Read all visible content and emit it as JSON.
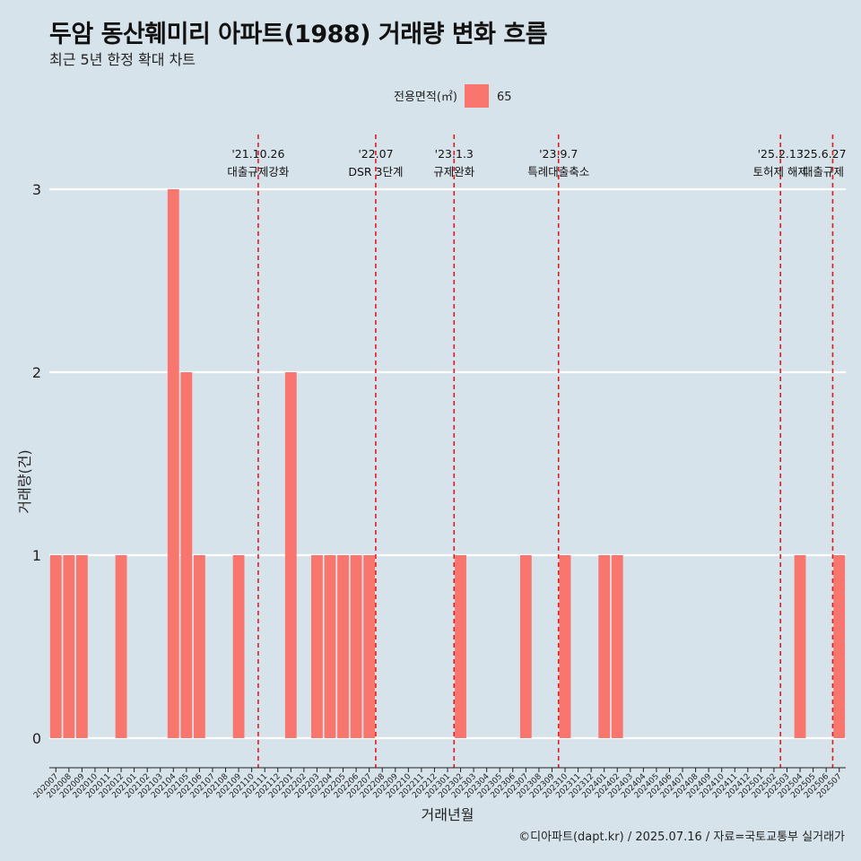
{
  "header": {
    "title": "두암 동산훼미리 아파트(1988) 거래량 변화 흐름",
    "subtitle": "최근 5년 한정 확대 차트"
  },
  "footer": {
    "caption": "©디아파트(dapt.kr) / 2025.07.16 / 자료=국토교통부 실거래가"
  },
  "colors": {
    "background": "#d7e3ea",
    "bar": "#f8766d",
    "gridline": "#ffffff",
    "event_line": "#e31a1c"
  },
  "chart_data": {
    "type": "bar",
    "xlabel": "거래년월",
    "ylabel": "거래량(건)",
    "ylim": [
      0,
      3
    ],
    "yticks": [
      0,
      1,
      2,
      3
    ],
    "grid": "horizontal",
    "legend": {
      "title": "전용면적(㎡)",
      "placement": "top",
      "entries": [
        "65"
      ]
    },
    "categories": [
      "202007",
      "202008",
      "202009",
      "202010",
      "202011",
      "202012",
      "202101",
      "202102",
      "202103",
      "202104",
      "202105",
      "202106",
      "202107",
      "202108",
      "202109",
      "202110",
      "202111",
      "202112",
      "202201",
      "202202",
      "202203",
      "202204",
      "202205",
      "202206",
      "202207",
      "202208",
      "202209",
      "202210",
      "202211",
      "202212",
      "202301",
      "202302",
      "202303",
      "202304",
      "202305",
      "202306",
      "202307",
      "202308",
      "202309",
      "202310",
      "202311",
      "202312",
      "202401",
      "202402",
      "202403",
      "202404",
      "202405",
      "202406",
      "202407",
      "202408",
      "202409",
      "202410",
      "202411",
      "202412",
      "202501",
      "202502",
      "202503",
      "202504",
      "202505",
      "202506",
      "202507"
    ],
    "series": [
      {
        "name": "65",
        "values": [
          1,
          1,
          1,
          0,
          0,
          1,
          0,
          0,
          0,
          3,
          2,
          1,
          0,
          0,
          1,
          0,
          0,
          0,
          2,
          0,
          1,
          1,
          1,
          1,
          1,
          0,
          0,
          0,
          0,
          0,
          0,
          1,
          0,
          0,
          0,
          0,
          1,
          0,
          0,
          1,
          0,
          0,
          1,
          1,
          0,
          0,
          0,
          0,
          0,
          0,
          0,
          0,
          0,
          0,
          0,
          0,
          0,
          1,
          0,
          0,
          1
        ]
      }
    ],
    "events": [
      {
        "date": "'21.10.26",
        "label": "대출규제강화",
        "x": "202110"
      },
      {
        "date": "'22.07",
        "label": "DSR 3단계",
        "x": "202207"
      },
      {
        "date": "'23.1.3",
        "label": "규제완화",
        "x": "202301"
      },
      {
        "date": "'23.9.7",
        "label": "특례대출축소",
        "x": "202309"
      },
      {
        "date": "'25.2.13",
        "label": "토허제 해제",
        "x": "202502"
      },
      {
        "date": "'25.6.27",
        "label": "대출규제",
        "x": "202506"
      }
    ]
  }
}
